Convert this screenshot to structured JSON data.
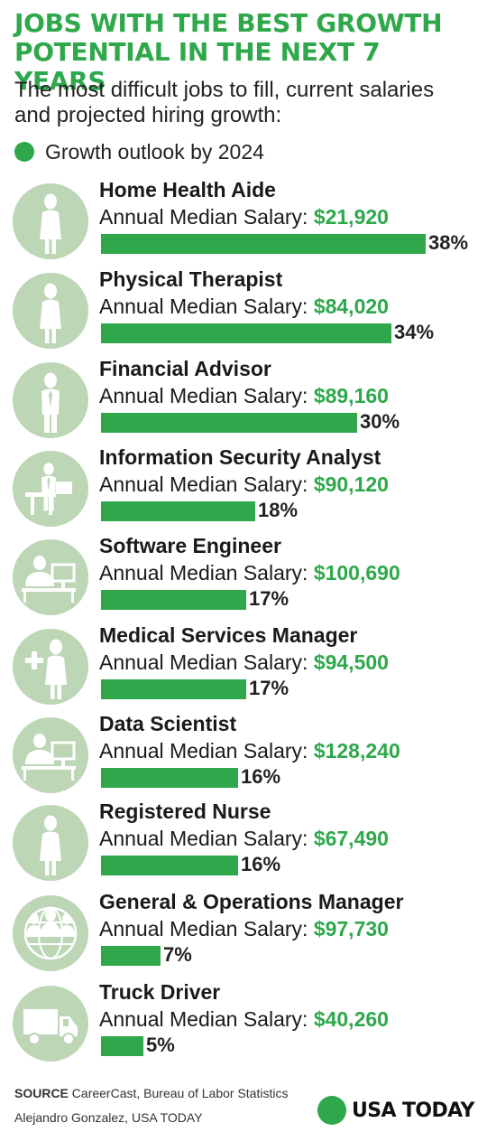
{
  "header": {
    "title": "JOBS WITH THE BEST GROWTH POTENTIAL IN THE NEXT 7 YEARS",
    "subtitle": "The most difficult jobs to fill, current salaries and projected hiring growth:"
  },
  "legend": {
    "label": "Growth outlook by 2024"
  },
  "colors": {
    "accent": "#2ea84a",
    "icon_bg": "#bcd6b6",
    "text": "#222222"
  },
  "chart_data": {
    "type": "bar",
    "orientation": "horizontal",
    "title": "JOBS WITH THE BEST GROWTH POTENTIAL IN THE NEXT 7 YEARS",
    "subtitle": "The most difficult jobs to fill, current salaries and projected hiring growth:",
    "legend": [
      "Growth outlook by 2024"
    ],
    "salary_prefix": "Annual Median Salary: ",
    "unit": "%",
    "xlim": [
      0,
      38
    ],
    "categories": [
      "Home Health Aide",
      "Physical Therapist",
      "Financial Advisor",
      "Information Security Analyst",
      "Software Engineer",
      "Medical Services Manager",
      "Data Scientist",
      "Registered Nurse",
      "General & Operations Manager",
      "Truck Driver"
    ],
    "values": [
      38,
      34,
      30,
      18,
      17,
      17,
      16,
      16,
      7,
      5
    ],
    "value_labels": [
      "38%",
      "34%",
      "30%",
      "18%",
      "17%",
      "17%",
      "16%",
      "16%",
      "7%",
      "5%"
    ],
    "salaries": [
      "$21,920",
      "$84,020",
      "$89,160",
      "$90,120",
      "$100,690",
      "$94,500",
      "$128,240",
      "$67,490",
      "$97,730",
      "$40,260"
    ],
    "icons": [
      "woman-icon",
      "woman-icon",
      "businessman-icon",
      "desk-worker-icon",
      "computer-worker-icon",
      "medical-manager-icon",
      "computer-worker-icon",
      "nurse-icon",
      "team-globe-icon",
      "truck-icon"
    ]
  },
  "footer": {
    "source_label": "SOURCE",
    "source_text": " CareerCast, Bureau of Labor Statistics",
    "credit": "Alejandro Gonzalez, USA TODAY",
    "brand": "USA TODAY"
  }
}
